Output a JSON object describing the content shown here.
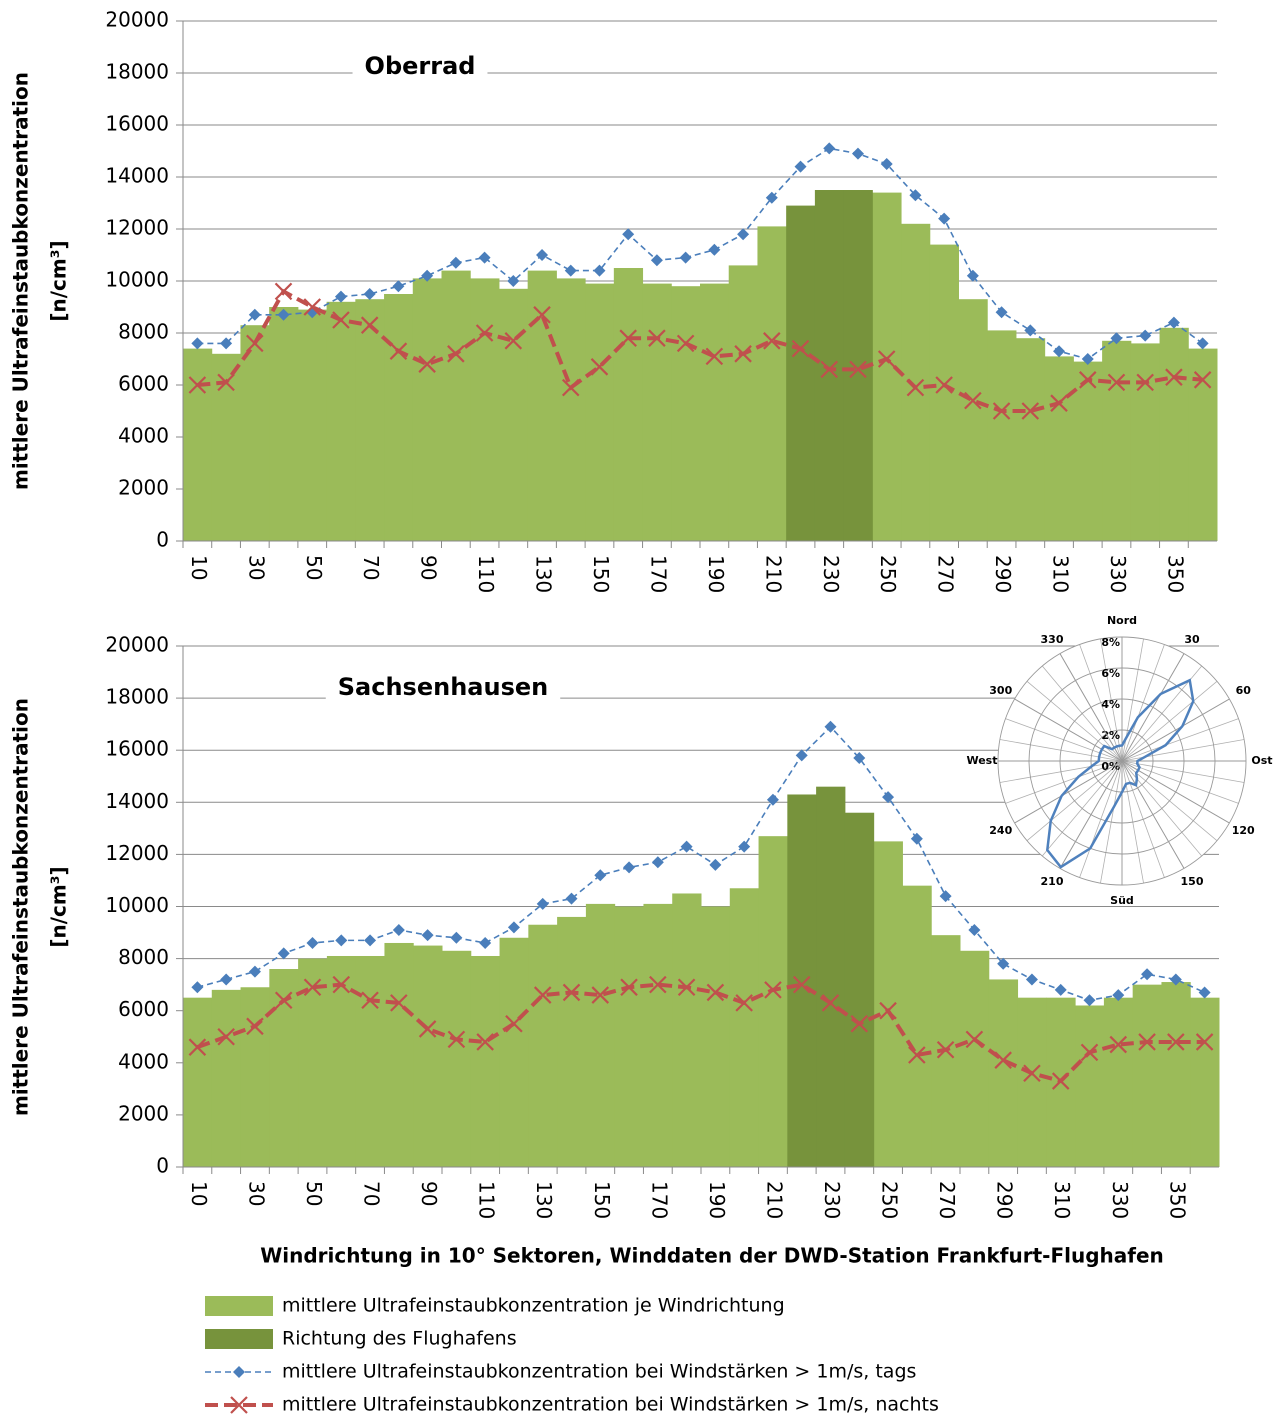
{
  "chart_data": [
    {
      "type": "combo",
      "title": "Oberrad",
      "y_label": [
        "mittlere Ultrafeinstaubkonzentration",
        "[n/cm³]"
      ],
      "categories": [
        10,
        null,
        30,
        null,
        50,
        null,
        70,
        null,
        90,
        null,
        110,
        null,
        130,
        null,
        150,
        null,
        170,
        null,
        190,
        null,
        210,
        null,
        230,
        null,
        250,
        null,
        270,
        null,
        290,
        null,
        310,
        null,
        330,
        null,
        350,
        null
      ],
      "ylim": [
        0,
        20000
      ],
      "yticks": [
        0,
        2000,
        4000,
        6000,
        8000,
        10000,
        12000,
        14000,
        16000,
        18000,
        20000
      ],
      "grid": true,
      "series": [
        {
          "name": "mittlere Ultrafeinstaubkonzentration je Windrichtung",
          "type": "bar",
          "color": "#9bbb59",
          "values": [
            7400,
            7200,
            8300,
            9000,
            8900,
            9200,
            9300,
            9500,
            10100,
            10400,
            10100,
            9700,
            10400,
            10100,
            9900,
            10500,
            9900,
            9800,
            9900,
            10600,
            12100,
            null,
            null,
            null,
            13400,
            12200,
            11400,
            9300,
            8100,
            7800,
            7100,
            6900,
            7700,
            7600,
            8200,
            7400
          ]
        },
        {
          "name": "Richtung des Flughafens",
          "type": "bar",
          "color": "#77933c",
          "values": [
            null,
            null,
            null,
            null,
            null,
            null,
            null,
            null,
            null,
            null,
            null,
            null,
            null,
            null,
            null,
            null,
            null,
            null,
            null,
            null,
            null,
            12900,
            13500,
            13500,
            null,
            null,
            null,
            null,
            null,
            null,
            null,
            null,
            null,
            null,
            null,
            null
          ]
        },
        {
          "name": "mittlere Ultrafeinstaubkonzentration bei Windstärken > 1m/s, tags",
          "type": "line",
          "marker": "diamond",
          "color": "#4a7ebb",
          "values": [
            7600,
            7600,
            8700,
            8700,
            8800,
            9400,
            9500,
            9800,
            10200,
            10700,
            10900,
            10000,
            11000,
            10400,
            10400,
            11800,
            10800,
            10900,
            11200,
            11800,
            13200,
            14400,
            15100,
            14900,
            14500,
            13300,
            12400,
            10200,
            8800,
            8100,
            7300,
            7000,
            7800,
            7900,
            8400,
            7600
          ]
        },
        {
          "name": "mittlere Ultrafeinstaubkonzentration bei Windstärken > 1m/s, nachts",
          "type": "line",
          "marker": "x",
          "color": "#c0504d",
          "values": [
            6000,
            6100,
            7600,
            9600,
            9000,
            8500,
            8300,
            7300,
            6800,
            7200,
            8000,
            7700,
            8700,
            5900,
            6700,
            7800,
            7800,
            7600,
            7100,
            7200,
            7700,
            7400,
            6600,
            6600,
            7000,
            5900,
            6000,
            5400,
            5000,
            5000,
            5300,
            6200,
            6100,
            6100,
            6300,
            6200
          ]
        }
      ]
    },
    {
      "type": "combo",
      "title": "Sachsenhausen",
      "x_label": "Windrichtung in 10° Sektoren, Winddaten der DWD-Station Frankfurt-Flughafen",
      "y_label": [
        "mittlere Ultrafeinstaubkonzentration",
        "[n/cm³]"
      ],
      "categories": [
        10,
        null,
        30,
        null,
        50,
        null,
        70,
        null,
        90,
        null,
        110,
        null,
        130,
        null,
        150,
        null,
        170,
        null,
        190,
        null,
        210,
        null,
        230,
        null,
        250,
        null,
        270,
        null,
        290,
        null,
        310,
        null,
        330,
        null,
        350,
        null
      ],
      "ylim": [
        0,
        20000
      ],
      "yticks": [
        0,
        2000,
        4000,
        6000,
        8000,
        10000,
        12000,
        14000,
        16000,
        18000,
        20000
      ],
      "grid": true,
      "series": [
        {
          "type": "bar",
          "color": "#9bbb59",
          "values": [
            6500,
            6800,
            6900,
            7600,
            8000,
            8100,
            8100,
            8600,
            8500,
            8300,
            8100,
            8800,
            9300,
            9600,
            10100,
            10000,
            10100,
            10500,
            10000,
            10700,
            12700,
            null,
            null,
            null,
            12500,
            10800,
            8900,
            8300,
            7200,
            6500,
            6500,
            6200,
            6500,
            7000,
            7100,
            6500
          ]
        },
        {
          "type": "bar",
          "color": "#77933c",
          "values": [
            null,
            null,
            null,
            null,
            null,
            null,
            null,
            null,
            null,
            null,
            null,
            null,
            null,
            null,
            null,
            null,
            null,
            null,
            null,
            null,
            null,
            14300,
            14600,
            13600,
            null,
            null,
            null,
            null,
            null,
            null,
            null,
            null,
            null,
            null,
            null,
            null
          ]
        },
        {
          "type": "line",
          "marker": "diamond",
          "color": "#4a7ebb",
          "values": [
            6900,
            7200,
            7500,
            8200,
            8600,
            8700,
            8700,
            9100,
            8900,
            8800,
            8600,
            9200,
            10100,
            10300,
            11200,
            11500,
            11700,
            12300,
            11600,
            12300,
            14100,
            15800,
            16900,
            15700,
            14200,
            12600,
            10400,
            9100,
            7800,
            7200,
            6800,
            6400,
            6600,
            7400,
            7200,
            6700
          ]
        },
        {
          "type": "line",
          "marker": "x",
          "color": "#c0504d",
          "values": [
            4600,
            5000,
            5400,
            6400,
            6900,
            7000,
            6400,
            6300,
            5300,
            4900,
            4800,
            5500,
            6600,
            6700,
            6600,
            6900,
            7000,
            6900,
            6700,
            6300,
            6800,
            7000,
            6300,
            5500,
            6000,
            4300,
            4500,
            4900,
            4100,
            3600,
            3300,
            4400,
            4700,
            4800,
            4800,
            4800
          ]
        }
      ]
    },
    {
      "type": "polar",
      "color": "#4f81bd",
      "x": [
        0,
        10,
        20,
        30,
        40,
        50,
        60,
        70,
        80,
        90,
        100,
        110,
        120,
        130,
        140,
        150,
        160,
        170,
        180,
        190,
        200,
        210,
        220,
        230,
        240,
        250,
        260,
        270,
        280,
        290,
        300,
        310,
        320,
        330,
        340,
        350
      ],
      "values": [
        1,
        1.5,
        3,
        5,
        6.8,
        6,
        4.5,
        3,
        1.5,
        1,
        1,
        1.2,
        1.2,
        1.2,
        1.5,
        1.8,
        1.5,
        1.5,
        2,
        3,
        6,
        7.9,
        7.5,
        6,
        4.5,
        3,
        2,
        1.5,
        1.5,
        1.5,
        1.5,
        1.5,
        1,
        1,
        1,
        1
      ],
      "xticks": [
        {
          "value": 0,
          "label": "Nord"
        },
        30,
        60,
        {
          "value": 90,
          "label": "Ost"
        },
        120,
        150,
        {
          "value": 180,
          "label": "Süd"
        },
        210,
        240,
        {
          "value": 270,
          "label": "West"
        },
        300,
        330
      ],
      "ylim": [
        0,
        8
      ],
      "yticks": [
        {
          "value": 0,
          "label": "0%"
        },
        {
          "value": 2,
          "label": "2%"
        },
        {
          "value": 4,
          "label": "4%"
        },
        {
          "value": 6,
          "label": "6%"
        },
        {
          "value": 8,
          "label": "8%"
        }
      ]
    }
  ]
}
